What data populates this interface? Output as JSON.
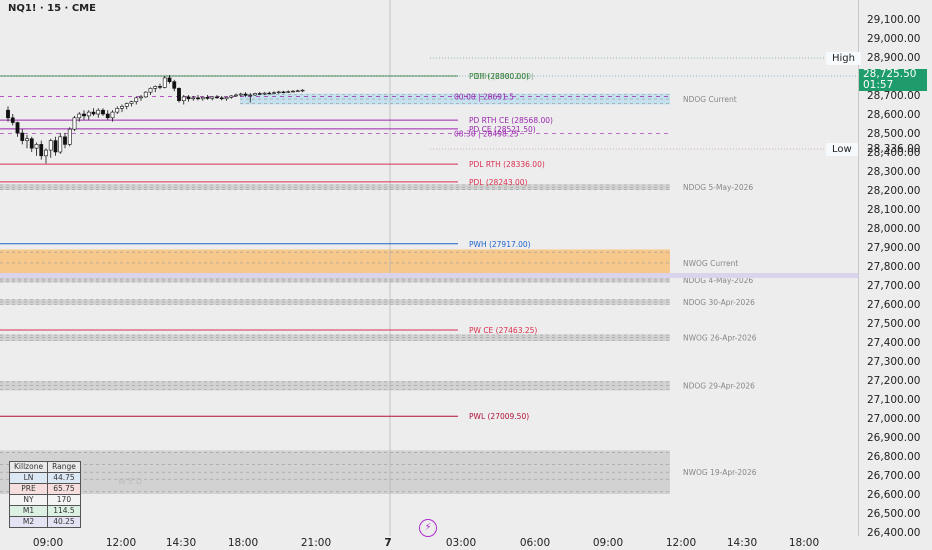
{
  "header": {
    "symbol_line": "NQ1! · 15 · CME"
  },
  "price_axis": {
    "ticks": [
      "29,100.00",
      "29,000.00",
      "28,900.00",
      "28,800.00",
      "28,700.00",
      "28,600.00",
      "28,500.00",
      "28,400.00",
      "28,300.00",
      "28,200.00",
      "28,100.00",
      "28,000.00",
      "27,900.00",
      "27,800.00",
      "27,700.00",
      "27,600.00",
      "27,500.00",
      "27,400.00",
      "27,300.00",
      "27,200.00",
      "27,100.00",
      "27,000.00",
      "26,900.00",
      "26,800.00",
      "26,700.00",
      "26,600.00",
      "26,500.00",
      "26,400.00"
    ],
    "current_price": "28,725.50",
    "countdown": "01:57",
    "high_tag": "High",
    "low_tag": "Low",
    "low_value": "28,336.00"
  },
  "time_axis": {
    "ticks": [
      "09:00",
      "12:00",
      "14:30",
      "18:00",
      "21:00",
      "7",
      "03:00",
      "06:00",
      "09:00",
      "12:00",
      "14:30",
      "18:00"
    ]
  },
  "levels": [
    {
      "label": "PDH (28800.00)",
      "overlap": "ETH (28802.00)",
      "price": 28800,
      "color": "#2e7d32",
      "dashed": false
    },
    {
      "label": "00:00  |  28691.5",
      "price": 28691.5,
      "color": "#9c27b0",
      "dashed": true
    },
    {
      "label": "PD RTH CE (28568.00)",
      "price": 28568,
      "color": "#9c27b0",
      "dashed": false
    },
    {
      "label": "PD CE (28521.50)",
      "price": 28521.5,
      "color": "#9c27b0",
      "dashed": false
    },
    {
      "label": "08:30  |  28498.25",
      "price": 28498.25,
      "color": "#9c27b0",
      "dashed": true
    },
    {
      "label": "PDL RTH (28336.00)",
      "price": 28336,
      "color": "#d93050",
      "dashed": false
    },
    {
      "label": "PDL (28243.00)",
      "price": 28243,
      "color": "#d93050",
      "dashed": false
    },
    {
      "label": "PWH (27917.00)",
      "price": 27917,
      "color": "#1e63c9",
      "dashed": false
    },
    {
      "label": "PW CE (27463.25)",
      "price": 27463.25,
      "color": "#d93050",
      "dashed": false
    },
    {
      "label": "PWL (27009.50)",
      "price": 27009.5,
      "color": "#b0103a",
      "dashed": false
    }
  ],
  "zones": [
    {
      "label": "NDOG Current",
      "top": 28707,
      "bottom": 28650,
      "fill": "#c6e1ee"
    },
    {
      "label": "NDOG 5-May-2026",
      "top": 28230,
      "bottom": 28200,
      "fill": "#d2d2d2"
    },
    {
      "label": "NWOG Current",
      "top": 27887,
      "bottom": 27745,
      "fill": "#f6c88b"
    },
    {
      "label": "NDOG 4-May-2026",
      "top": 27740,
      "bottom": 27720,
      "fill": "#d2d2d2"
    },
    {
      "label": "NDOG 30-Apr-2026",
      "top": 27625,
      "bottom": 27595,
      "fill": "#d2d2d2"
    },
    {
      "label": "NWOG 26-Apr-2026",
      "top": 27440,
      "bottom": 27405,
      "fill": "#d2d2d2"
    },
    {
      "label": "NDOG 29-Apr-2026",
      "top": 27195,
      "bottom": 27145,
      "fill": "#d2d2d2"
    },
    {
      "label": "NWOG 19-Apr-2026",
      "top": 26830,
      "bottom": 26600,
      "fill": "#d2d2d2"
    }
  ],
  "weekday_watermark": "W E D",
  "killzones": {
    "headers": [
      "Killzone",
      "Range"
    ],
    "rows": [
      {
        "name": "LN",
        "range": "44.75",
        "bg": "#dce9f5"
      },
      {
        "name": "PRE",
        "range": "65.75",
        "bg": "#f6dede"
      },
      {
        "name": "NY",
        "range": "170",
        "bg": "#f4f4f4"
      },
      {
        "name": "M1",
        "range": "114.5",
        "bg": "#ddf0e4"
      },
      {
        "name": "M2",
        "range": "40.25",
        "bg": "#e3e3f4"
      }
    ]
  },
  "chart_data": {
    "type": "candlestick",
    "ylim": [
      26380,
      29180
    ],
    "candles": [
      [
        28620,
        28640,
        28560,
        28580
      ],
      [
        28580,
        28600,
        28540,
        28555
      ],
      [
        28555,
        28560,
        28480,
        28500
      ],
      [
        28500,
        28520,
        28440,
        28460
      ],
      [
        28460,
        28490,
        28420,
        28470
      ],
      [
        28470,
        28480,
        28400,
        28420
      ],
      [
        28420,
        28450,
        28380,
        28440
      ],
      [
        28440,
        28460,
        28360,
        28380
      ],
      [
        28380,
        28420,
        28340,
        28410
      ],
      [
        28410,
        28470,
        28370,
        28460
      ],
      [
        28460,
        28480,
        28380,
        28400
      ],
      [
        28400,
        28500,
        28390,
        28480
      ],
      [
        28480,
        28500,
        28420,
        28440
      ],
      [
        28440,
        28530,
        28430,
        28520
      ],
      [
        28520,
        28590,
        28510,
        28580
      ],
      [
        28580,
        28610,
        28560,
        28600
      ],
      [
        28600,
        28620,
        28570,
        28590
      ],
      [
        28590,
        28620,
        28570,
        28610
      ],
      [
        28610,
        28630,
        28590,
        28600
      ],
      [
        28600,
        28630,
        28580,
        28620
      ],
      [
        28620,
        28630,
        28590,
        28600
      ],
      [
        28600,
        28620,
        28570,
        28580
      ],
      [
        28580,
        28620,
        28560,
        28610
      ],
      [
        28610,
        28640,
        28600,
        28630
      ],
      [
        28630,
        28650,
        28610,
        28640
      ],
      [
        28640,
        28660,
        28625,
        28655
      ],
      [
        28655,
        28670,
        28640,
        28665
      ],
      [
        28665,
        28690,
        28650,
        28685
      ],
      [
        28685,
        28700,
        28670,
        28690
      ],
      [
        28690,
        28720,
        28685,
        28715
      ],
      [
        28715,
        28740,
        28700,
        28735
      ],
      [
        28735,
        28750,
        28715,
        28745
      ],
      [
        28745,
        28760,
        28730,
        28740
      ],
      [
        28740,
        28800,
        28735,
        28790
      ],
      [
        28790,
        28805,
        28760,
        28770
      ],
      [
        28770,
        28780,
        28720,
        28735
      ],
      [
        28735,
        28740,
        28660,
        28670
      ],
      [
        28670,
        28700,
        28650,
        28690
      ],
      [
        28690,
        28700,
        28665,
        28680
      ],
      [
        28680,
        28695,
        28670,
        28685
      ],
      [
        28685,
        28700,
        28672,
        28680
      ],
      [
        28680,
        28692,
        28670,
        28688
      ],
      [
        28688,
        28700,
        28675,
        28682
      ],
      [
        28682,
        28695,
        28672,
        28690
      ],
      [
        28690,
        28700,
        28680,
        28685
      ],
      [
        28685,
        28695,
        28672,
        28680
      ],
      [
        28680,
        28692,
        28670,
        28688
      ],
      [
        28688,
        28700,
        28680,
        28695
      ],
      [
        28695,
        28708,
        28690,
        28700
      ],
      [
        28700,
        28712,
        28692,
        28705
      ],
      [
        28705,
        28715,
        28690,
        28698
      ],
      [
        28698,
        28710,
        28660,
        28700
      ],
      [
        28700,
        28712,
        28695,
        28708
      ],
      [
        28708,
        28716,
        28700,
        28705
      ],
      [
        28705,
        28715,
        28700,
        28710
      ],
      [
        28710,
        28718,
        28702,
        28708
      ],
      [
        28708,
        28720,
        28703,
        28712
      ],
      [
        28712,
        28722,
        28706,
        28716
      ],
      [
        28716,
        28722,
        28709,
        28714
      ],
      [
        28714,
        28724,
        28711,
        28718
      ],
      [
        28718,
        28726,
        28714,
        28720
      ],
      [
        28720,
        28728,
        28716,
        28722
      ],
      [
        28722,
        28730,
        28715,
        28725.5
      ]
    ]
  }
}
